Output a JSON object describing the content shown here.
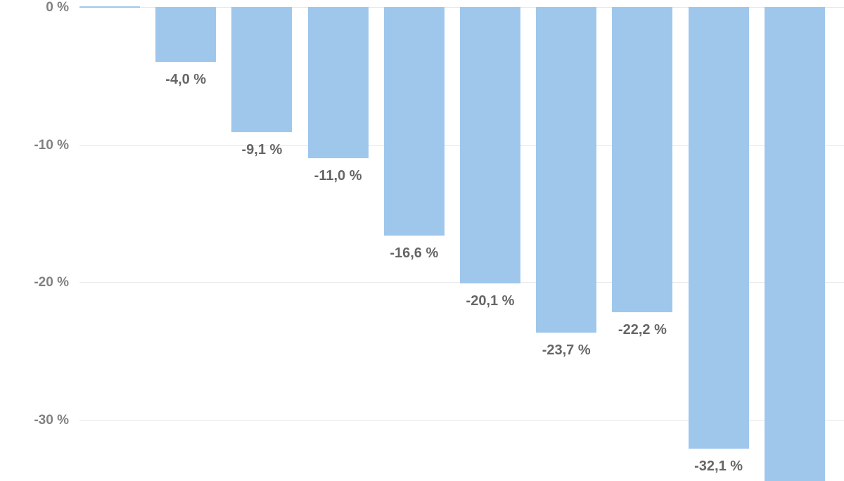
{
  "chart_data": {
    "type": "bar",
    "title": "",
    "xlabel": "",
    "ylabel": "",
    "categories": [
      "",
      "",
      "",
      "",
      "",
      "",
      "",
      "",
      "",
      ""
    ],
    "values": [
      0.0,
      -4.0,
      -9.1,
      -11.0,
      -16.6,
      -20.1,
      -23.7,
      -22.2,
      -32.1,
      -34.5
    ],
    "value_labels": [
      "",
      "-4,0 %",
      "-9,1 %",
      "-11,0 %",
      "-16,6 %",
      "-20,1 %",
      "-23,7 %",
      "-22,2 %",
      "-32,1 %",
      ""
    ],
    "yticks": [
      "0 %",
      "-10 %",
      "-20 %",
      "-30 %"
    ],
    "ytick_values": [
      0,
      -10,
      -20,
      -30
    ],
    "ylim": [
      -34,
      0
    ],
    "grid": true,
    "legend": "none",
    "bar_color": "#9fc7ec",
    "notes": "Last bar extends beyond visible area; its label is cut off."
  }
}
